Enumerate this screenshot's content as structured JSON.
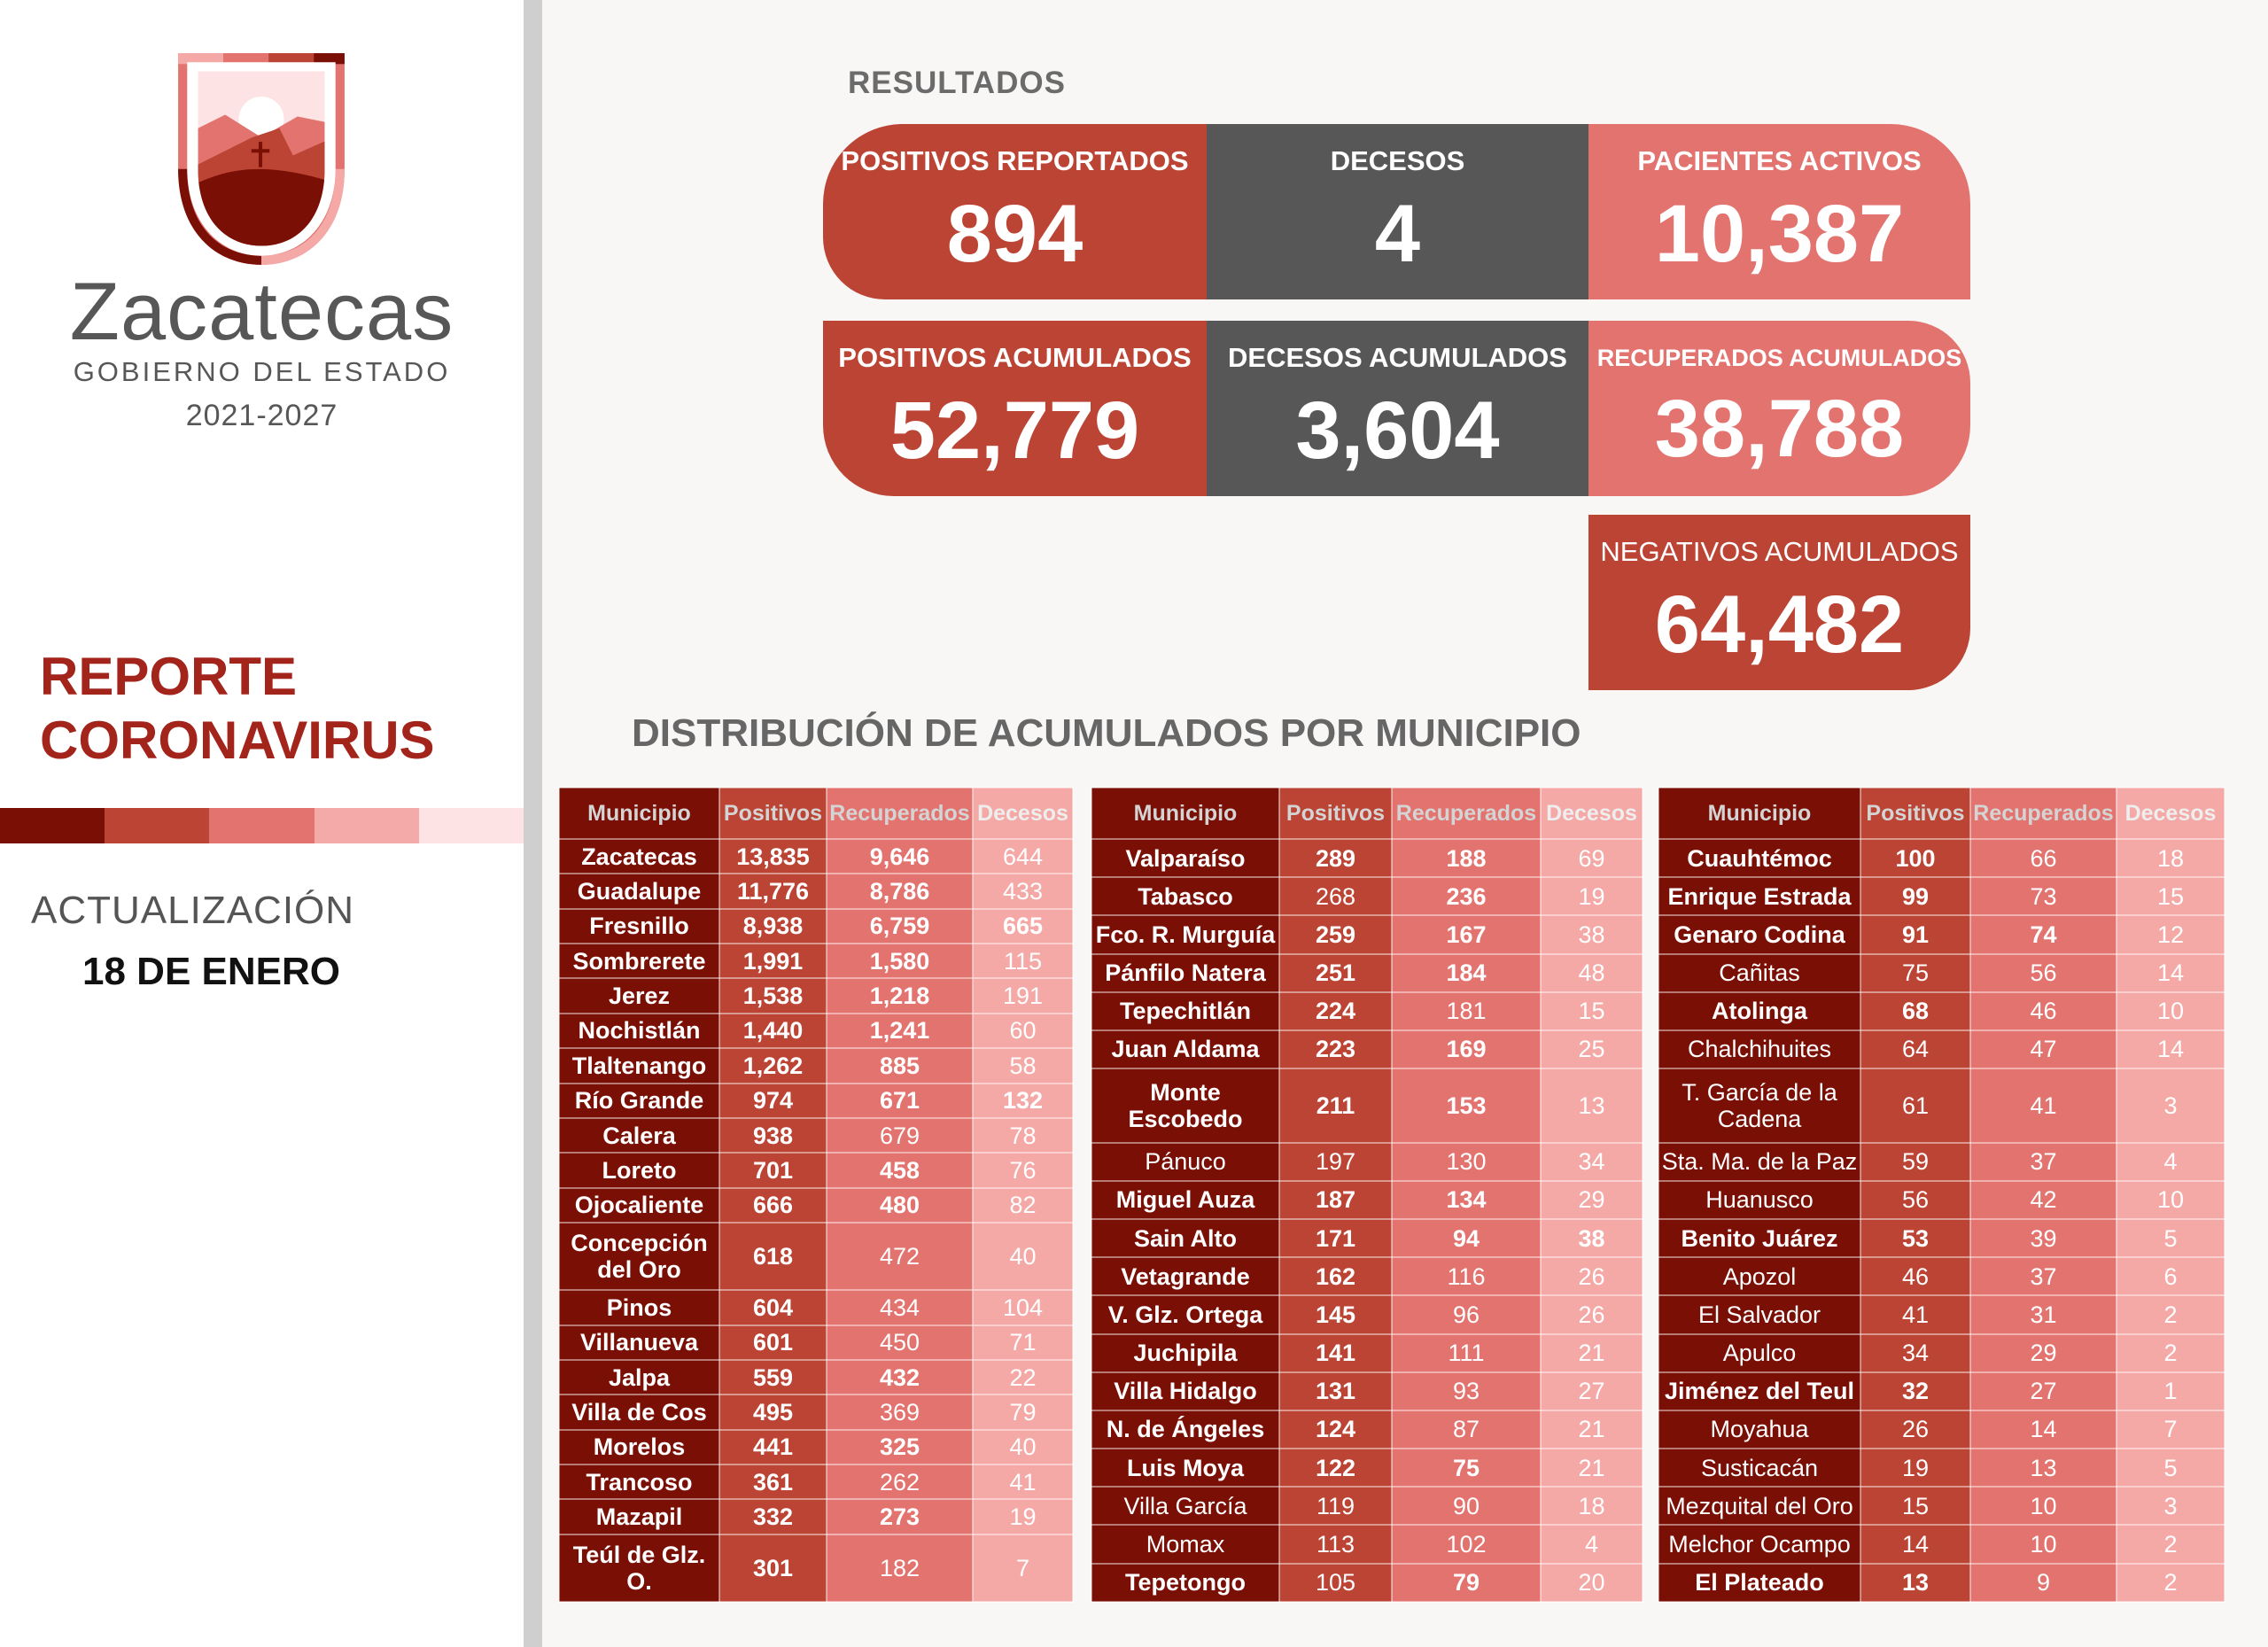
{
  "brand": {
    "name": "Zacatecas",
    "subtitle": "GOBIERNO DEL ESTADO",
    "years": "2021-2027"
  },
  "report": {
    "line1": "REPORTE",
    "line2": "CORONAVIRUS",
    "update_label": "ACTUALIZACIÓN",
    "update_date": "18 DE ENERO"
  },
  "colors": {
    "dark": "#7a0f05",
    "red": "#bc4434",
    "salmon": "#e3736f",
    "pink": "#f4a9a6",
    "light": "#fde3e3",
    "gray": "#575757"
  },
  "results": {
    "title": "RESULTADOS",
    "cards": [
      {
        "label": "POSITIVOS REPORTADOS",
        "value": "894"
      },
      {
        "label": "DECESOS",
        "value": "4"
      },
      {
        "label": "PACIENTES ACTIVOS",
        "value": "10,387"
      },
      {
        "label": "POSITIVOS ACUMULADOS",
        "value": "52,779"
      },
      {
        "label": "DECESOS ACUMULADOS",
        "value": "3,604"
      },
      {
        "label": "RECUPERADOS ACUMULADOS",
        "value": "38,788"
      },
      {
        "label": "NEGATIVOS ACUMULADOS",
        "value": "64,482"
      }
    ]
  },
  "distribution": {
    "title": "DISTRIBUCIÓN DE ACUMULADOS POR MUNICIPIO",
    "headers": [
      "Municipio",
      "Positivos",
      "Recuperados",
      "Decesos"
    ],
    "tables": [
      [
        {
          "m": "Zacatecas",
          "p": "13,835",
          "r": "9,646",
          "d": "644",
          "bold": [
            1,
            1,
            1,
            0
          ]
        },
        {
          "m": "Guadalupe",
          "p": "11,776",
          "r": "8,786",
          "d": "433",
          "bold": [
            1,
            1,
            1,
            0
          ]
        },
        {
          "m": "Fresnillo",
          "p": "8,938",
          "r": "6,759",
          "d": "665",
          "bold": [
            1,
            1,
            1,
            1
          ]
        },
        {
          "m": "Sombrerete",
          "p": "1,991",
          "r": "1,580",
          "d": "115",
          "bold": [
            1,
            1,
            1,
            0
          ]
        },
        {
          "m": "Jerez",
          "p": "1,538",
          "r": "1,218",
          "d": "191",
          "bold": [
            1,
            1,
            1,
            0
          ]
        },
        {
          "m": "Nochistlán",
          "p": "1,440",
          "r": "1,241",
          "d": "60",
          "bold": [
            1,
            1,
            1,
            0
          ]
        },
        {
          "m": "Tlaltenango",
          "p": "1,262",
          "r": "885",
          "d": "58",
          "bold": [
            1,
            1,
            1,
            0
          ]
        },
        {
          "m": "Río Grande",
          "p": "974",
          "r": "671",
          "d": "132",
          "bold": [
            1,
            1,
            1,
            1
          ]
        },
        {
          "m": "Calera",
          "p": "938",
          "r": "679",
          "d": "78",
          "bold": [
            1,
            1,
            0,
            0
          ]
        },
        {
          "m": "Loreto",
          "p": "701",
          "r": "458",
          "d": "76",
          "bold": [
            1,
            1,
            1,
            0
          ]
        },
        {
          "m": "Ojocaliente",
          "p": "666",
          "r": "480",
          "d": "82",
          "bold": [
            1,
            1,
            1,
            0
          ]
        },
        {
          "m": "Concepción del Oro",
          "p": "618",
          "r": "472",
          "d": "40",
          "bold": [
            1,
            1,
            0,
            0
          ]
        },
        {
          "m": "Pinos",
          "p": "604",
          "r": "434",
          "d": "104",
          "bold": [
            1,
            1,
            0,
            0
          ]
        },
        {
          "m": "Villanueva",
          "p": "601",
          "r": "450",
          "d": "71",
          "bold": [
            1,
            1,
            0,
            0
          ]
        },
        {
          "m": "Jalpa",
          "p": "559",
          "r": "432",
          "d": "22",
          "bold": [
            1,
            1,
            1,
            0
          ]
        },
        {
          "m": "Villa de Cos",
          "p": "495",
          "r": "369",
          "d": "79",
          "bold": [
            1,
            1,
            0,
            0
          ]
        },
        {
          "m": "Morelos",
          "p": "441",
          "r": "325",
          "d": "40",
          "bold": [
            1,
            1,
            1,
            0
          ]
        },
        {
          "m": "Trancoso",
          "p": "361",
          "r": "262",
          "d": "41",
          "bold": [
            1,
            1,
            0,
            0
          ]
        },
        {
          "m": "Mazapil",
          "p": "332",
          "r": "273",
          "d": "19",
          "bold": [
            1,
            1,
            1,
            0
          ]
        },
        {
          "m": "Teúl de Glz. O.",
          "p": "301",
          "r": "182",
          "d": "7",
          "bold": [
            1,
            1,
            0,
            0
          ]
        }
      ],
      [
        {
          "m": "Valparaíso",
          "p": "289",
          "r": "188",
          "d": "69",
          "bold": [
            1,
            1,
            1,
            0
          ]
        },
        {
          "m": "Tabasco",
          "p": "268",
          "r": "236",
          "d": "19",
          "bold": [
            1,
            0,
            1,
            0
          ]
        },
        {
          "m": "Fco. R. Murguía",
          "p": "259",
          "r": "167",
          "d": "38",
          "bold": [
            1,
            1,
            1,
            0
          ]
        },
        {
          "m": "Pánfilo Natera",
          "p": "251",
          "r": "184",
          "d": "48",
          "bold": [
            1,
            1,
            1,
            0
          ]
        },
        {
          "m": "Tepechitlán",
          "p": "224",
          "r": "181",
          "d": "15",
          "bold": [
            1,
            1,
            0,
            0
          ]
        },
        {
          "m": "Juan Aldama",
          "p": "223",
          "r": "169",
          "d": "25",
          "bold": [
            1,
            1,
            1,
            0
          ]
        },
        {
          "m": "Monte Escobedo",
          "p": "211",
          "r": "153",
          "d": "13",
          "bold": [
            1,
            1,
            1,
            0
          ]
        },
        {
          "m": "Pánuco",
          "p": "197",
          "r": "130",
          "d": "34",
          "bold": [
            0,
            0,
            0,
            0
          ]
        },
        {
          "m": "Miguel Auza",
          "p": "187",
          "r": "134",
          "d": "29",
          "bold": [
            1,
            1,
            1,
            0
          ]
        },
        {
          "m": "Sain Alto",
          "p": "171",
          "r": "94",
          "d": "38",
          "bold": [
            1,
            1,
            1,
            1
          ]
        },
        {
          "m": "Vetagrande",
          "p": "162",
          "r": "116",
          "d": "26",
          "bold": [
            1,
            1,
            0,
            0
          ]
        },
        {
          "m": "V. Glz. Ortega",
          "p": "145",
          "r": "96",
          "d": "26",
          "bold": [
            1,
            1,
            0,
            0
          ]
        },
        {
          "m": "Juchipila",
          "p": "141",
          "r": "111",
          "d": "21",
          "bold": [
            1,
            1,
            0,
            0
          ]
        },
        {
          "m": "Villa Hidalgo",
          "p": "131",
          "r": "93",
          "d": "27",
          "bold": [
            1,
            1,
            0,
            0
          ]
        },
        {
          "m": "N. de Ángeles",
          "p": "124",
          "r": "87",
          "d": "21",
          "bold": [
            1,
            1,
            0,
            0
          ]
        },
        {
          "m": "Luis Moya",
          "p": "122",
          "r": "75",
          "d": "21",
          "bold": [
            1,
            1,
            1,
            0
          ]
        },
        {
          "m": "Villa García",
          "p": "119",
          "r": "90",
          "d": "18",
          "bold": [
            0,
            0,
            0,
            0
          ]
        },
        {
          "m": "Momax",
          "p": "113",
          "r": "102",
          "d": "4",
          "bold": [
            0,
            0,
            0,
            0
          ]
        },
        {
          "m": "Tepetongo",
          "p": "105",
          "r": "79",
          "d": "20",
          "bold": [
            1,
            0,
            1,
            0
          ]
        }
      ],
      [
        {
          "m": "Cuauhtémoc",
          "p": "100",
          "r": "66",
          "d": "18",
          "bold": [
            1,
            1,
            0,
            0
          ]
        },
        {
          "m": "Enrique Estrada",
          "p": "99",
          "r": "73",
          "d": "15",
          "bold": [
            1,
            1,
            0,
            0
          ]
        },
        {
          "m": "Genaro Codina",
          "p": "91",
          "r": "74",
          "d": "12",
          "bold": [
            1,
            1,
            1,
            0
          ]
        },
        {
          "m": "Cañitas",
          "p": "75",
          "r": "56",
          "d": "14",
          "bold": [
            0,
            0,
            0,
            0
          ]
        },
        {
          "m": "Atolinga",
          "p": "68",
          "r": "46",
          "d": "10",
          "bold": [
            1,
            1,
            0,
            0
          ]
        },
        {
          "m": "Chalchihuites",
          "p": "64",
          "r": "47",
          "d": "14",
          "bold": [
            0,
            0,
            0,
            0
          ]
        },
        {
          "m": "T. García de la Cadena",
          "p": "61",
          "r": "41",
          "d": "3",
          "bold": [
            0,
            0,
            0,
            0
          ]
        },
        {
          "m": "Sta. Ma. de la Paz",
          "p": "59",
          "r": "37",
          "d": "4",
          "bold": [
            0,
            0,
            0,
            0
          ]
        },
        {
          "m": "Huanusco",
          "p": "56",
          "r": "42",
          "d": "10",
          "bold": [
            0,
            0,
            0,
            0
          ]
        },
        {
          "m": "Benito Juárez",
          "p": "53",
          "r": "39",
          "d": "5",
          "bold": [
            1,
            1,
            0,
            0
          ]
        },
        {
          "m": "Apozol",
          "p": "46",
          "r": "37",
          "d": "6",
          "bold": [
            0,
            0,
            0,
            0
          ]
        },
        {
          "m": "El Salvador",
          "p": "41",
          "r": "31",
          "d": "2",
          "bold": [
            0,
            0,
            0,
            0
          ]
        },
        {
          "m": "Apulco",
          "p": "34",
          "r": "29",
          "d": "2",
          "bold": [
            0,
            0,
            0,
            0
          ]
        },
        {
          "m": "Jiménez del Teul",
          "p": "32",
          "r": "27",
          "d": "1",
          "bold": [
            1,
            1,
            0,
            0
          ]
        },
        {
          "m": "Moyahua",
          "p": "26",
          "r": "14",
          "d": "7",
          "bold": [
            0,
            0,
            0,
            0
          ]
        },
        {
          "m": "Susticacán",
          "p": "19",
          "r": "13",
          "d": "5",
          "bold": [
            0,
            0,
            0,
            0
          ]
        },
        {
          "m": "Mezquital del Oro",
          "p": "15",
          "r": "10",
          "d": "3",
          "bold": [
            0,
            0,
            0,
            0
          ]
        },
        {
          "m": "Melchor Ocampo",
          "p": "14",
          "r": "10",
          "d": "2",
          "bold": [
            0,
            0,
            0,
            0
          ]
        },
        {
          "m": "El Plateado",
          "p": "13",
          "r": "9",
          "d": "2",
          "bold": [
            1,
            1,
            0,
            0
          ]
        }
      ]
    ]
  }
}
